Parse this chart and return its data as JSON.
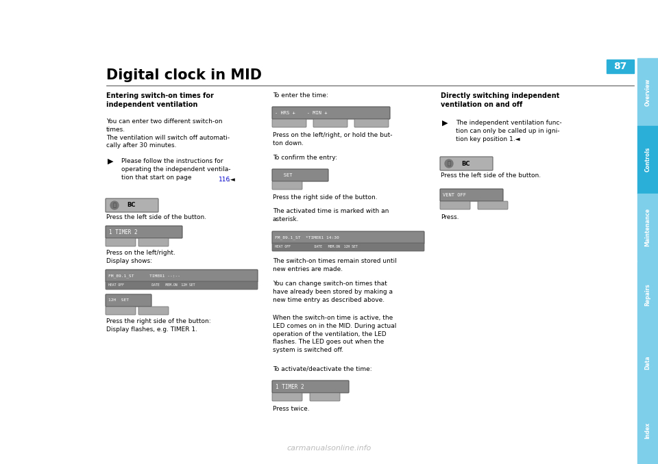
{
  "bg_color": "#ffffff",
  "page_width": 9.6,
  "page_height": 6.78,
  "title": "Digital clock in MID",
  "page_number": "87",
  "sidebar_labels": [
    "Overview",
    "Controls",
    "Maintenance",
    "Repairs",
    "Data",
    "Index"
  ],
  "watermark": "carmanualsonline.info",
  "sidebar_colors": {
    "Overview": "#7ecfea",
    "Controls": "#2ab0d8",
    "Maintenance": "#7ecfea",
    "Repairs": "#7ecfea",
    "Data": "#7ecfea",
    "Index": "#7ecfea"
  },
  "page_bg": "#ffffff",
  "gray_display": "#888888",
  "gray_display_dark": "#666666",
  "gray_btn": "#aaaaaa",
  "text_color": "#000000",
  "link_color": "#0000cc"
}
